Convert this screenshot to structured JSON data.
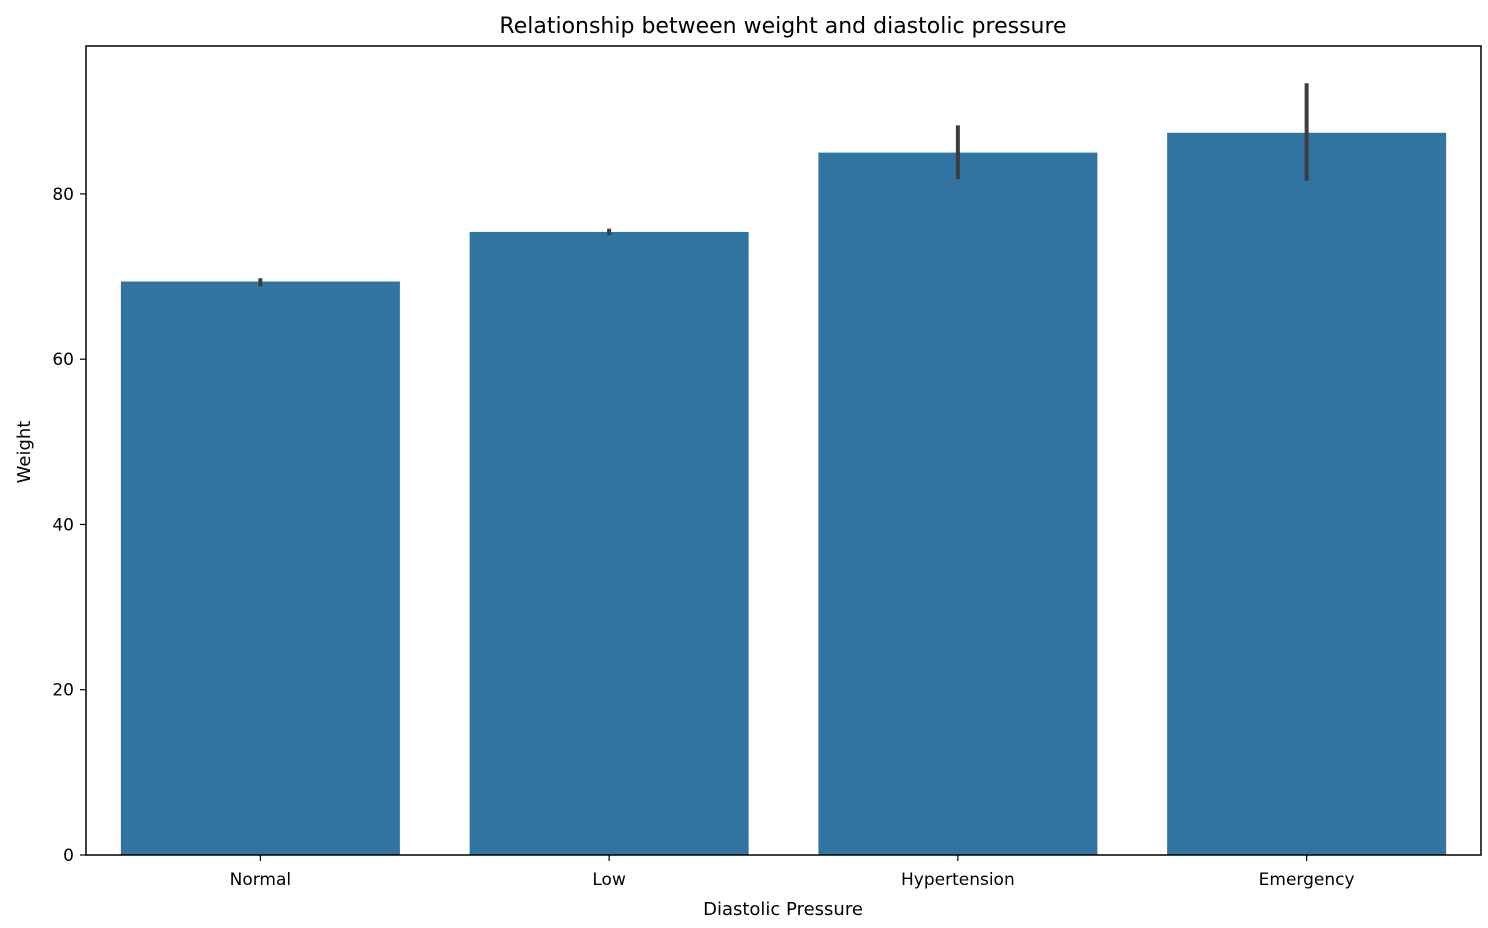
{
  "chart_data": {
    "type": "bar",
    "title": "Relationship between weight and diastolic pressure",
    "xlabel": "Diastolic Pressure",
    "ylabel": "Weight",
    "categories": [
      "Normal",
      "Low",
      "Hypertension",
      "Emergency"
    ],
    "values": [
      69.4,
      75.4,
      85.0,
      87.4
    ],
    "error_bars": [
      {
        "low": 68.8,
        "high": 69.8
      },
      {
        "low": 75.0,
        "high": 75.8
      },
      {
        "low": 81.8,
        "high": 88.3
      },
      {
        "low": 81.6,
        "high": 93.4
      }
    ],
    "y_ticks": [
      0,
      20,
      40,
      60,
      80
    ],
    "ylim": [
      0,
      97.9
    ],
    "grid": false,
    "legend": "none",
    "colors": {
      "bar": "#3274a1",
      "error_bar": "#3d3d3d",
      "axis": "#000000"
    }
  }
}
